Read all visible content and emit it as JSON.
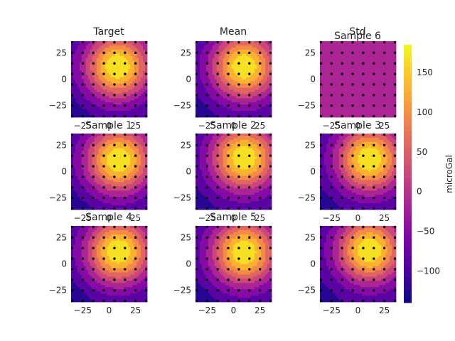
{
  "figure": {
    "colorbar_label": "microGal"
  },
  "chart_data": {
    "type": "heatmap",
    "colormap": "plasma",
    "panel_titles": [
      "Target",
      "Mean",
      "Std",
      "Sample 1",
      "Sample 2",
      "Sample 3",
      "Sample 4",
      "Sample 5",
      "Sample 6"
    ],
    "xlim": [
      -36,
      36
    ],
    "ylim": [
      -36,
      36
    ],
    "xticks": [
      -25,
      0,
      25
    ],
    "yticks": [
      -25,
      0,
      25
    ],
    "colorbar": {
      "range": [
        -140,
        185
      ],
      "ticks": [
        -100,
        -50,
        0,
        50,
        100,
        150
      ],
      "label": "microGal"
    },
    "field": {
      "peak_value": 185,
      "min_value": -140,
      "target_peak": [
        8,
        12
      ],
      "mean_peak": [
        10,
        12
      ],
      "std_value": -20
    },
    "observation_grid": {
      "start": -35,
      "step": 10,
      "count": 8
    }
  }
}
